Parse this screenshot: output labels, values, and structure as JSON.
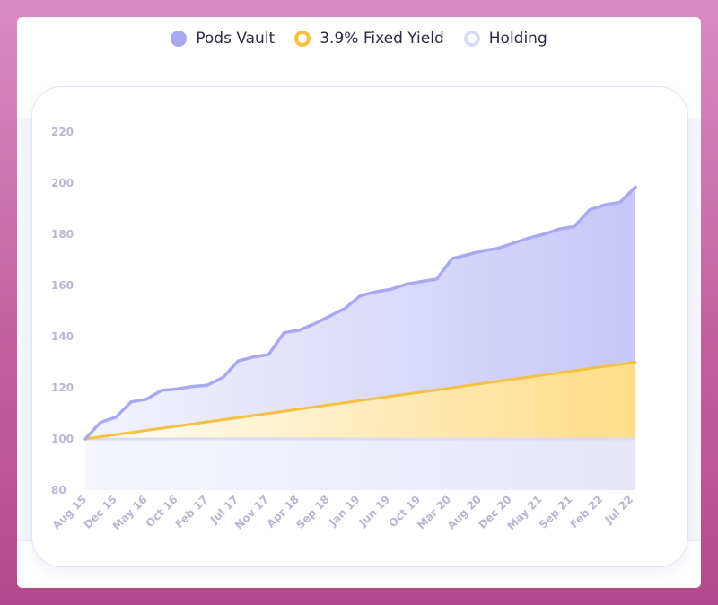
{
  "legend": {
    "items": [
      {
        "label": "Pods Vault",
        "icon": "filled-circle-icon",
        "color": "#a9a9f2"
      },
      {
        "label": "3.9% Fixed Yield",
        "icon": "ring-icon",
        "color": "#f6c142"
      },
      {
        "label": "Holding",
        "icon": "ring-icon",
        "color": "#dadaf6"
      }
    ]
  },
  "chart_data": {
    "type": "area",
    "title": "",
    "xlabel": "",
    "ylabel": "",
    "ylim": [
      80,
      220
    ],
    "yticks": [
      80,
      100,
      120,
      140,
      160,
      180,
      200,
      220
    ],
    "grid": false,
    "legend_position": "top-center",
    "x_tick_labels": [
      "Aug 15",
      "Dec 15",
      "May 16",
      "Oct 16",
      "Feb 17",
      "Jul 17",
      "Nov 17",
      "Apr 18",
      "Sep 18",
      "Jan 19",
      "Jun 19",
      "Oct 19",
      "Mar 20",
      "Aug 20",
      "Dec 20",
      "May 21",
      "Sep 21",
      "Feb 22",
      "Jul 22"
    ],
    "series": [
      {
        "name": "Pods Vault",
        "color": "#a9a9f2",
        "values": [
          100.0,
          106.5,
          108.5,
          114.5,
          115.5,
          119.0,
          119.5,
          120.5,
          121.0,
          124.0,
          130.5,
          132.0,
          133.0,
          141.5,
          142.5,
          145.0,
          148.0,
          151.0,
          156.0,
          157.5,
          158.5,
          160.5,
          161.5,
          162.5,
          170.5,
          172.0,
          173.5,
          174.5,
          176.5,
          178.5,
          180.0,
          182.0,
          183.0,
          189.5,
          191.5,
          192.5,
          198.5
        ]
      },
      {
        "name": "3.9% Fixed Yield",
        "color": "#f6c142",
        "values": [
          100.0,
          130.0
        ]
      },
      {
        "name": "Holding",
        "color": "#dadaf6",
        "values": [
          100.0,
          100.0
        ]
      }
    ]
  }
}
